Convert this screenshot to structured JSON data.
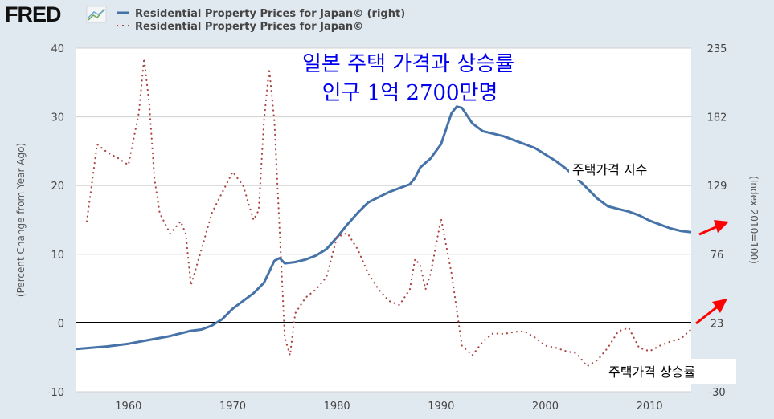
{
  "logo": "FRED",
  "legend": [
    {
      "label": "Residential Property Prices for Japan© (right)",
      "style": "solid",
      "color": "#4572a7"
    },
    {
      "label": "Residential Property Prices for Japan©",
      "style": "dotted",
      "color": "#aa4643"
    }
  ],
  "annotations": {
    "title_line1": "일본 주택 가격과 상승률",
    "title_line2": "인구 1억 2700만명",
    "index_label": "주택가격 지수",
    "change_label": "주택가격 상승률"
  },
  "chart_data": {
    "type": "line",
    "xlabel": "",
    "ylabel_left": "(Percent Change from Year Ago)",
    "ylabel_right": "(Index 2010=100)",
    "xlim": [
      1955,
      2014
    ],
    "ylim_left": [
      -10,
      40
    ],
    "ylim_right": [
      -30,
      235
    ],
    "x_ticks": [
      "1960",
      "1970",
      "1980",
      "1990",
      "2000",
      "2010"
    ],
    "left_ticks": [
      "40",
      "30",
      "20",
      "10",
      "0",
      "-10"
    ],
    "right_ticks": [
      "235",
      "182",
      "129",
      "76",
      "23",
      "-30"
    ],
    "grid": true,
    "series": [
      {
        "name": "Residential Property Prices for Japan© (right)",
        "axis": "right",
        "x": [
          1955,
          1958,
          1960,
          1962,
          1964,
          1966,
          1967,
          1968,
          1969,
          1970,
          1971,
          1972,
          1973,
          1974,
          1974.5,
          1975,
          1976,
          1977,
          1978,
          1979,
          1980,
          1981,
          1982,
          1983,
          1984,
          1985,
          1986,
          1987,
          1987.5,
          1988,
          1989,
          1990,
          1990.5,
          1991,
          1991.5,
          1992,
          1993,
          1994,
          1995,
          1996,
          1997,
          1998,
          1999,
          2000,
          2001,
          2002,
          2003,
          2004,
          2005,
          2006,
          2007,
          2008,
          2009,
          2010,
          2011,
          2012,
          2013,
          2014
        ],
        "y": [
          3,
          5,
          7,
          10,
          13,
          17,
          18,
          21,
          26,
          34,
          40,
          46,
          54,
          71,
          73,
          69,
          70,
          72,
          75,
          80,
          89,
          99,
          108,
          116,
          120,
          124,
          127,
          130,
          135,
          143,
          150,
          161,
          173,
          185,
          190,
          189,
          177,
          171,
          169,
          167,
          164,
          161,
          158,
          153,
          148,
          142,
          135,
          127,
          119,
          113,
          111,
          109,
          106,
          102,
          99,
          96,
          94,
          93
        ]
      },
      {
        "name": "Residential Property Prices for Japan©",
        "axis": "left",
        "x": [
          1956,
          1957,
          1958,
          1959,
          1960,
          1961,
          1961.5,
          1962,
          1962.5,
          1963,
          1964,
          1965,
          1965.5,
          1966,
          1967,
          1968,
          1969,
          1970,
          1971,
          1972,
          1972.5,
          1973,
          1973.5,
          1974,
          1975,
          1975.5,
          1976,
          1977,
          1978,
          1979,
          1980,
          1981,
          1982,
          1983,
          1984,
          1985,
          1986,
          1987,
          1987.5,
          1988,
          1988.5,
          1989,
          1990,
          1991,
          1992,
          1993,
          1994,
          1995,
          1996,
          1997,
          1998,
          1999,
          2000,
          2001,
          2002,
          2003,
          2004,
          2005,
          2006,
          2007,
          2008,
          2009,
          2010,
          2011,
          2012,
          2013,
          2014
        ],
        "y": [
          14.8,
          26,
          24.8,
          24,
          23,
          30.6,
          38.5,
          31.8,
          21,
          16,
          13,
          14.8,
          13,
          5.5,
          10.7,
          16,
          19,
          22,
          20,
          15,
          16.4,
          29.4,
          37,
          29.4,
          -2.1,
          -4.7,
          1.4,
          3.7,
          4.9,
          6.7,
          12.5,
          13.1,
          10.7,
          7.2,
          4.9,
          3.2,
          2.6,
          4.9,
          9.3,
          8.4,
          4.9,
          7.2,
          15.2,
          7.2,
          -3.3,
          -4.7,
          -2.7,
          -1.5,
          -1.6,
          -1.3,
          -1.2,
          -2.1,
          -3.3,
          -3.6,
          -4.1,
          -4.4,
          -6.3,
          -5.4,
          -3.6,
          -1.2,
          -0.7,
          -3.6,
          -4.1,
          -3.3,
          -2.7,
          -2.3,
          -0.9
        ]
      }
    ]
  }
}
